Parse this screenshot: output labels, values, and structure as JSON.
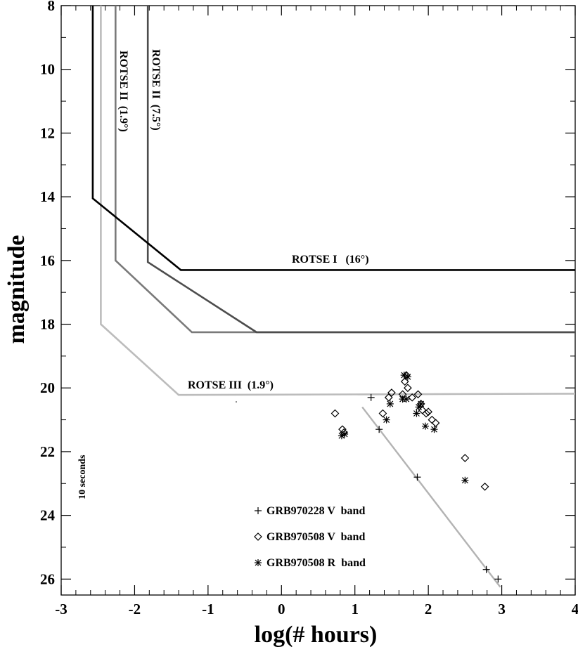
{
  "chart_data": {
    "type": "line",
    "xlabel": "log(# hours)",
    "ylabel": "magnitude",
    "xlim": [
      -3,
      4
    ],
    "ylim": [
      8,
      26.5
    ],
    "y_inverted": true,
    "x_ticks": [
      -3,
      -2,
      -1,
      0,
      1,
      2,
      3,
      4
    ],
    "x_tick_labels": [
      "-3",
      "-2",
      "-1",
      "0",
      "1",
      "2",
      "3",
      "4"
    ],
    "y_ticks": [
      8,
      10,
      12,
      14,
      16,
      18,
      20,
      22,
      24,
      26
    ],
    "y_tick_labels": [
      "8",
      "10",
      "12",
      "14",
      "16",
      "18",
      "20",
      "22",
      "24",
      "26"
    ],
    "grid": false,
    "limit_curves": [
      {
        "label": "ROTSE I   (16°)",
        "color": "#000000",
        "points": [
          [
            -2.57,
            8
          ],
          [
            -2.57,
            14.05
          ],
          [
            -1.37,
            16.3
          ],
          [
            4,
            16.3
          ]
        ]
      },
      {
        "label": "ROTSE II  (1.9°)",
        "color": "#7a7a7a",
        "points": [
          [
            -2.26,
            8
          ],
          [
            -2.26,
            16.0
          ],
          [
            -1.22,
            18.25
          ],
          [
            4,
            18.25
          ]
        ]
      },
      {
        "label": "ROTSE II  (7.5°)",
        "color": "#4d4d4d",
        "points": [
          [
            -1.82,
            8
          ],
          [
            -1.82,
            16.05
          ],
          [
            -0.34,
            18.25
          ],
          [
            4,
            18.25
          ]
        ]
      },
      {
        "label": "ROTSE III  (1.9°)",
        "color": "#bcbcbc",
        "points": [
          [
            -2.46,
            8
          ],
          [
            -2.46,
            18.0
          ],
          [
            -1.4,
            20.22
          ],
          [
            4,
            20.18
          ]
        ]
      }
    ],
    "fit_line": {
      "color": "#b3b3b3",
      "points": [
        [
          1.1,
          20.6
        ],
        [
          2.98,
          26.25
        ]
      ]
    },
    "annotations": [
      {
        "text": "10 seconds",
        "x": -2.72,
        "y": 22.8,
        "rotate": -90
      }
    ],
    "series": [
      {
        "name": "GRB970228 V  band",
        "marker": "plus",
        "points": [
          [
            1.22,
            20.3
          ],
          [
            1.33,
            21.3
          ],
          [
            1.85,
            22.8
          ],
          [
            2.79,
            25.7
          ],
          [
            2.95,
            26.0
          ]
        ]
      },
      {
        "name": "GRB970508 V  band",
        "marker": "diamond",
        "points": [
          [
            0.73,
            20.8
          ],
          [
            0.83,
            21.3
          ],
          [
            0.85,
            21.4
          ],
          [
            1.38,
            20.8
          ],
          [
            1.46,
            20.3
          ],
          [
            1.5,
            20.15
          ],
          [
            1.65,
            20.2
          ],
          [
            1.68,
            19.8
          ],
          [
            1.7,
            19.6
          ],
          [
            1.72,
            20.0
          ],
          [
            1.78,
            20.3
          ],
          [
            1.86,
            20.2
          ],
          [
            1.9,
            20.5
          ],
          [
            1.92,
            20.7
          ],
          [
            1.97,
            20.8
          ],
          [
            2.0,
            20.75
          ],
          [
            2.05,
            21.0
          ],
          [
            2.1,
            21.1
          ],
          [
            2.5,
            22.2
          ],
          [
            2.77,
            23.1
          ]
        ]
      },
      {
        "name": "GRB970508 R  band",
        "marker": "asterisk",
        "points": [
          [
            0.82,
            21.5
          ],
          [
            0.86,
            21.45
          ],
          [
            1.43,
            21.0
          ],
          [
            1.48,
            20.5
          ],
          [
            1.65,
            20.35
          ],
          [
            1.67,
            19.6
          ],
          [
            1.7,
            20.35
          ],
          [
            1.72,
            19.65
          ],
          [
            1.84,
            20.8
          ],
          [
            1.87,
            20.6
          ],
          [
            1.9,
            20.5
          ],
          [
            1.96,
            21.2
          ],
          [
            2.08,
            21.3
          ],
          [
            2.5,
            22.9
          ]
        ]
      }
    ],
    "legend_position": "bottom-center"
  }
}
